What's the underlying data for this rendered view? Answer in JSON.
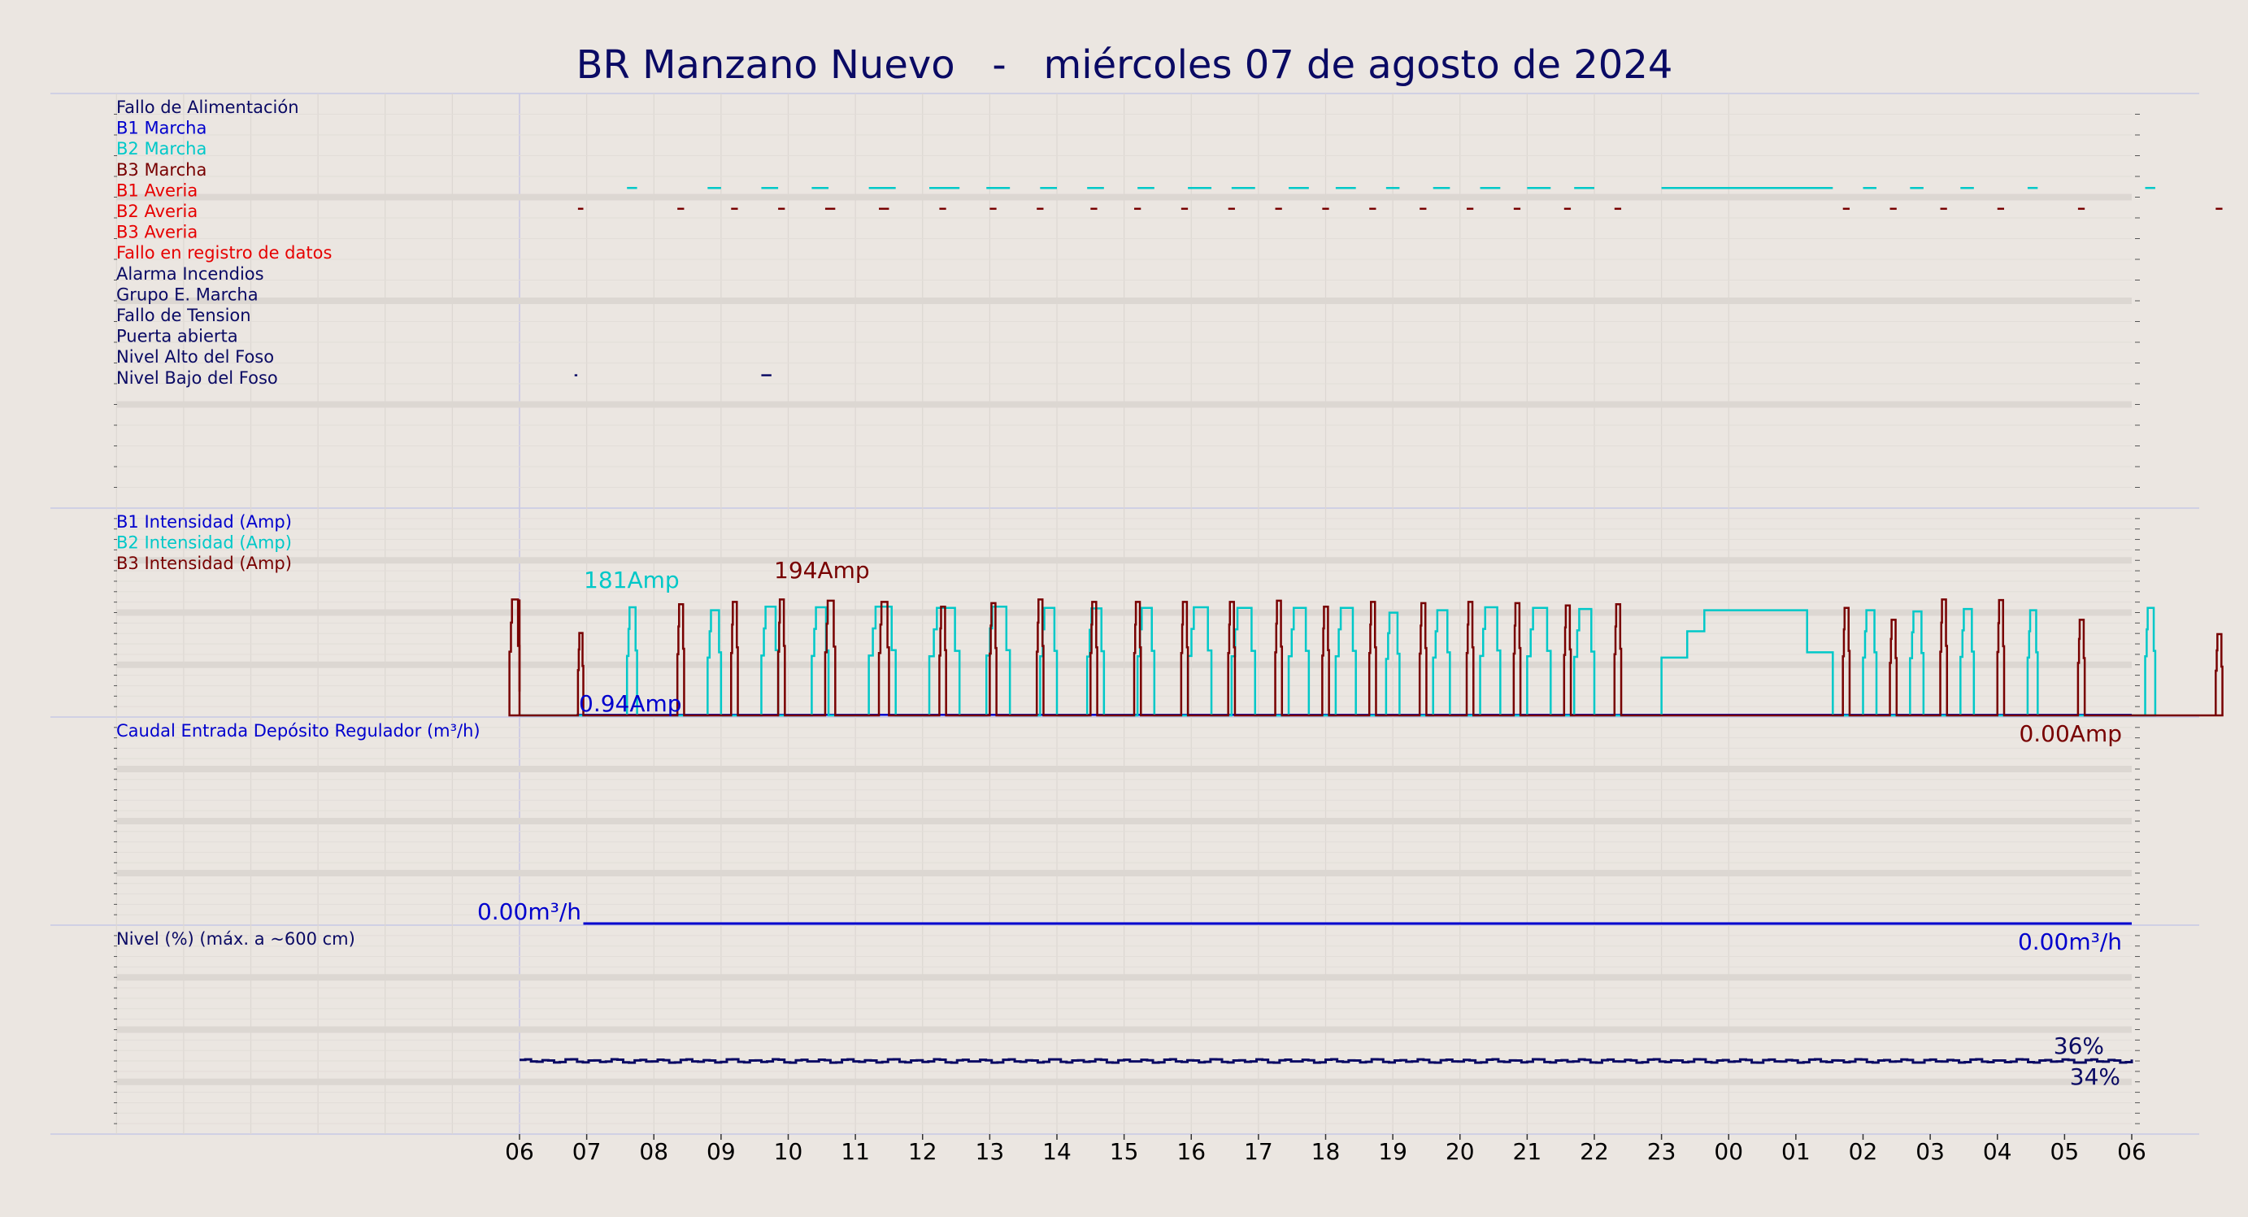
{
  "chart_data": {
    "type": "line",
    "title": "BR Manzano Nuevo   -   miércoles 07 de agosto de 2024",
    "x_ticks": [
      "06",
      "07",
      "08",
      "09",
      "10",
      "11",
      "12",
      "13",
      "14",
      "15",
      "16",
      "17",
      "18",
      "19",
      "20",
      "21",
      "22",
      "23",
      "00",
      "01",
      "02",
      "03",
      "04",
      "05",
      "06"
    ],
    "x_range": [
      -6,
      18
    ],
    "colors": {
      "background": "#ebe6e1",
      "navy": "#0a0a64",
      "blue": "#0000cd",
      "cyan": "#00c8c8",
      "maroon": "#780000",
      "red": "#e60000",
      "separator": "#c8c8e6"
    },
    "panels": [
      {
        "id": "digital",
        "labels": [
          {
            "text": "Fallo de Alimentación",
            "color": "#0a0a64"
          },
          {
            "text": "B1 Marcha",
            "color": "#0000cd"
          },
          {
            "text": "B2 Marcha",
            "color": "#00c8c8"
          },
          {
            "text": "B3 Marcha",
            "color": "#780000"
          },
          {
            "text": "B1 Averia",
            "color": "#e60000"
          },
          {
            "text": "B2 Averia",
            "color": "#e60000"
          },
          {
            "text": "B3 Averia",
            "color": "#e60000"
          },
          {
            "text": "Fallo en registro de datos",
            "color": "#e60000"
          },
          {
            "text": "Alarma Incendios",
            "color": "#0a0a64"
          },
          {
            "text": "Grupo E. Marcha",
            "color": "#0a0a64"
          },
          {
            "text": "Fallo de Tension",
            "color": "#0a0a64"
          },
          {
            "text": "Puerta abierta",
            "color": "#0a0a64"
          },
          {
            "text": "Nivel Alto del Foso",
            "color": "#0a0a64"
          },
          {
            "text": "Nivel Bajo del Foso",
            "color": "#0a0a64"
          }
        ],
        "events": [
          {
            "row": 2,
            "color": "#00c8c8",
            "segments": [
              [
                1.6,
                1.75
              ],
              [
                2.8,
                3.0
              ],
              [
                3.6,
                3.85
              ],
              [
                4.35,
                4.6
              ],
              [
                5.2,
                5.6
              ],
              [
                6.1,
                6.55
              ],
              [
                6.95,
                7.3
              ],
              [
                7.75,
                8.0
              ],
              [
                8.45,
                8.7
              ],
              [
                9.2,
                9.45
              ],
              [
                9.95,
                10.3
              ],
              [
                10.6,
                10.95
              ],
              [
                11.45,
                11.75
              ],
              [
                12.15,
                12.45
              ],
              [
                12.9,
                13.1
              ],
              [
                13.6,
                13.85
              ],
              [
                14.3,
                14.6
              ],
              [
                15.0,
                15.35
              ],
              [
                15.7,
                16.0
              ],
              [
                17.0,
                19.55
              ],
              [
                20.0,
                20.2
              ],
              [
                20.7,
                20.9
              ],
              [
                21.45,
                21.65
              ],
              [
                22.45,
                22.6
              ],
              [
                24.2,
                24.35
              ]
            ]
          },
          {
            "row": 3,
            "color": "#780000",
            "segments": [
              [
                0.87,
                0.95
              ],
              [
                2.35,
                2.45
              ],
              [
                3.15,
                3.25
              ],
              [
                3.85,
                3.95
              ],
              [
                4.55,
                4.7
              ],
              [
                5.35,
                5.5
              ],
              [
                6.25,
                6.35
              ],
              [
                7.0,
                7.1
              ],
              [
                7.7,
                7.8
              ],
              [
                8.5,
                8.6
              ],
              [
                9.15,
                9.25
              ],
              [
                9.85,
                9.95
              ],
              [
                10.55,
                10.65
              ],
              [
                11.25,
                11.35
              ],
              [
                11.95,
                12.05
              ],
              [
                12.65,
                12.75
              ],
              [
                13.4,
                13.5
              ],
              [
                14.1,
                14.2
              ],
              [
                14.8,
                14.9
              ],
              [
                15.55,
                15.65
              ],
              [
                16.3,
                16.4
              ],
              [
                19.7,
                19.8
              ],
              [
                20.4,
                20.5
              ],
              [
                21.15,
                21.25
              ],
              [
                22.0,
                22.1
              ],
              [
                23.2,
                23.3
              ],
              [
                25.25,
                25.35
              ]
            ]
          },
          {
            "row": 11,
            "color": "#0a0a64",
            "segments": [
              [
                0.82,
                0.86
              ],
              [
                3.6,
                3.75
              ]
            ]
          }
        ]
      },
      {
        "id": "intensity",
        "labels": [
          {
            "text": "B1 Intensidad (Amp)",
            "color": "#0000cd"
          },
          {
            "text": "B2 Intensidad (Amp)",
            "color": "#00c8c8"
          },
          {
            "text": "B3 Intensidad (Amp)",
            "color": "#780000"
          }
        ],
        "y_range": [
          0,
          200
        ],
        "annotations": [
          {
            "text": "181Amp",
            "color": "#00c8c8"
          },
          {
            "text": "194Amp",
            "color": "#780000"
          },
          {
            "text": "0.94Amp",
            "color": "#0000cd"
          },
          {
            "text": "0.00Amp",
            "color": "#780000"
          }
        ],
        "series": [
          {
            "name": "B1 Intensidad (Amp)",
            "color": "#0000cd",
            "kind": "flat",
            "x": [
              0.85,
              24
            ],
            "y": [
              0.94,
              0.94
            ]
          },
          {
            "name": "B2 Intensidad (Amp)",
            "color": "#00c8c8",
            "kind": "pulses",
            "base": 0,
            "pulses": [
              [
                1.6,
                1.75,
                181
              ],
              [
                2.8,
                3.0,
                176
              ],
              [
                3.6,
                3.85,
                182
              ],
              [
                4.35,
                4.6,
                181
              ],
              [
                5.2,
                5.6,
                182
              ],
              [
                6.1,
                6.55,
                180
              ],
              [
                6.95,
                7.3,
                182
              ],
              [
                7.75,
                8.0,
                180
              ],
              [
                8.45,
                8.7,
                179
              ],
              [
                9.2,
                9.45,
                180
              ],
              [
                9.95,
                10.3,
                181
              ],
              [
                10.6,
                10.95,
                180
              ],
              [
                11.45,
                11.75,
                180
              ],
              [
                12.15,
                12.45,
                180
              ],
              [
                12.9,
                13.1,
                172
              ],
              [
                13.6,
                13.85,
                176
              ],
              [
                14.3,
                14.6,
                181
              ],
              [
                15.0,
                15.35,
                180
              ],
              [
                15.7,
                16.0,
                178
              ],
              [
                17.0,
                19.55,
                176
              ],
              [
                20.0,
                20.2,
                176
              ],
              [
                20.7,
                20.9,
                174
              ],
              [
                21.45,
                21.65,
                178
              ],
              [
                22.45,
                22.6,
                176
              ],
              [
                24.2,
                24.35,
                180
              ]
            ]
          },
          {
            "name": "B3 Intensidad (Amp)",
            "color": "#780000",
            "kind": "pulses",
            "base": 0,
            "pulses": [
              [
                -0.15,
                0,
                194
              ],
              [
                0.87,
                0.95,
                138
              ],
              [
                2.35,
                2.45,
                186
              ],
              [
                3.15,
                3.25,
                190
              ],
              [
                3.85,
                3.95,
                194
              ],
              [
                4.55,
                4.7,
                192
              ],
              [
                5.35,
                5.5,
                190
              ],
              [
                6.25,
                6.35,
                182
              ],
              [
                7.0,
                7.1,
                188
              ],
              [
                7.7,
                7.8,
                194
              ],
              [
                8.5,
                8.6,
                190
              ],
              [
                9.15,
                9.25,
                190
              ],
              [
                9.85,
                9.95,
                190
              ],
              [
                10.55,
                10.65,
                190
              ],
              [
                11.25,
                11.35,
                192
              ],
              [
                11.95,
                12.05,
                182
              ],
              [
                12.65,
                12.75,
                190
              ],
              [
                13.4,
                13.5,
                188
              ],
              [
                14.1,
                14.2,
                190
              ],
              [
                14.8,
                14.9,
                188
              ],
              [
                15.55,
                15.65,
                184
              ],
              [
                16.3,
                16.4,
                186
              ],
              [
                19.7,
                19.8,
                180
              ],
              [
                20.4,
                20.5,
                160
              ],
              [
                21.15,
                21.25,
                194
              ],
              [
                22.0,
                22.1,
                193
              ],
              [
                23.2,
                23.3,
                160
              ],
              [
                25.25,
                25.35,
                136
              ]
            ]
          }
        ]
      },
      {
        "id": "flow",
        "labels": [
          {
            "text": "Caudal Entrada Depósito Regulador (m³/h)",
            "color": "#0000cd"
          }
        ],
        "y_range": [
          0,
          10
        ],
        "annotations": [
          {
            "text": "0.00m³/h",
            "color": "#0000cd"
          },
          {
            "text": "0.00m³/h",
            "color": "#0000cd"
          }
        ],
        "series": [
          {
            "name": "Caudal Entrada Depósito Regulador (m³/h)",
            "color": "#0000cd",
            "kind": "flat",
            "x": [
              0.95,
              24
            ],
            "y": [
              0,
              0
            ]
          }
        ]
      },
      {
        "id": "level",
        "labels": [
          {
            "text": "Nivel (%) (máx. a ~600 cm)",
            "color": "#0a0a64"
          }
        ],
        "y_range": [
          0,
          100
        ],
        "annotations": [
          {
            "text": "36%",
            "color": "#0a0a64"
          },
          {
            "text": "34%",
            "color": "#0a0a64"
          }
        ],
        "series": [
          {
            "name": "Nivel (%) (máx. a ~600 cm)",
            "color": "#0a0a64",
            "kind": "level",
            "start": 0,
            "end": 24,
            "mean": 35,
            "min": 34,
            "max": 36
          }
        ]
      }
    ]
  }
}
